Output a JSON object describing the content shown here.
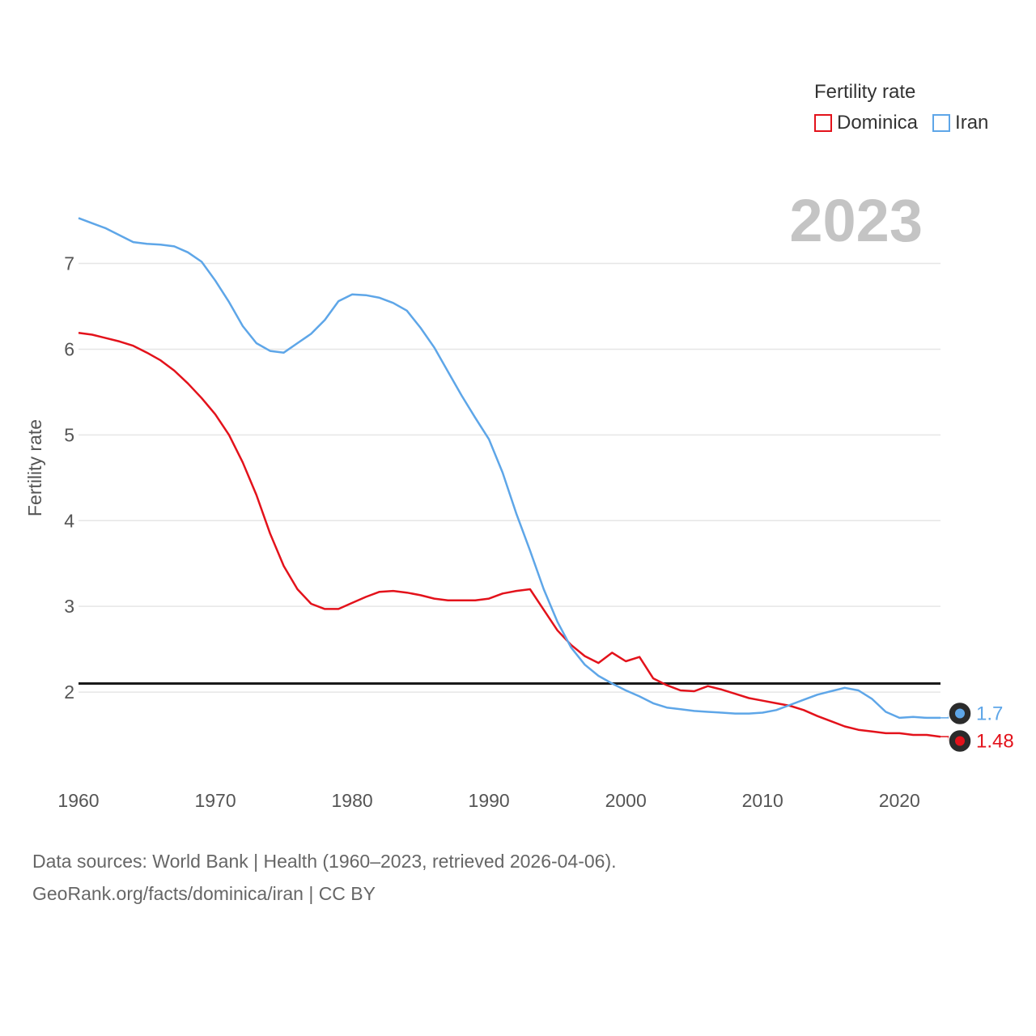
{
  "legend": {
    "title": "Fertility rate",
    "items": [
      {
        "label": "Dominica",
        "color": "#e3121b"
      },
      {
        "label": "Iran",
        "color": "#5ea6e8"
      }
    ]
  },
  "year_label": "2023",
  "footer": {
    "line1": "Data sources: World Bank | Health (1960–2023, retrieved 2026-04-06).",
    "line2": "GeoRank.org/facts/dominica/iran | CC BY"
  },
  "chart_data": {
    "type": "line",
    "title": "Fertility rate",
    "xlabel": "",
    "ylabel": "Fertility rate",
    "xlim": [
      1960,
      2023
    ],
    "ylim": [
      1.0,
      7.6
    ],
    "x_ticks": [
      1960,
      1970,
      1980,
      1990,
      2000,
      2010,
      2020
    ],
    "y_ticks": [
      2,
      3,
      4,
      5,
      6,
      7
    ],
    "reference_line": 2.1,
    "x": [
      1960,
      1961,
      1962,
      1963,
      1964,
      1965,
      1966,
      1967,
      1968,
      1969,
      1970,
      1971,
      1972,
      1973,
      1974,
      1975,
      1976,
      1977,
      1978,
      1979,
      1980,
      1981,
      1982,
      1983,
      1984,
      1985,
      1986,
      1987,
      1988,
      1989,
      1990,
      1991,
      1992,
      1993,
      1994,
      1995,
      1996,
      1997,
      1998,
      1999,
      2000,
      2001,
      2002,
      2003,
      2004,
      2005,
      2006,
      2007,
      2008,
      2009,
      2010,
      2011,
      2012,
      2013,
      2014,
      2015,
      2016,
      2017,
      2018,
      2019,
      2020,
      2021,
      2022,
      2023
    ],
    "series": [
      {
        "name": "Dominica",
        "color": "#e3121b",
        "end_label": "1.48",
        "values": [
          6.19,
          6.17,
          6.13,
          6.09,
          6.04,
          5.96,
          5.87,
          5.75,
          5.6,
          5.43,
          5.24,
          5.0,
          4.68,
          4.3,
          3.85,
          3.47,
          3.2,
          3.03,
          2.97,
          2.97,
          3.04,
          3.11,
          3.17,
          3.18,
          3.16,
          3.13,
          3.09,
          3.07,
          3.07,
          3.07,
          3.09,
          3.15,
          3.18,
          3.2,
          2.96,
          2.72,
          2.55,
          2.42,
          2.34,
          2.46,
          2.36,
          2.41,
          2.16,
          2.08,
          2.02,
          2.01,
          2.07,
          2.03,
          1.98,
          1.93,
          1.9,
          1.87,
          1.84,
          1.79,
          1.72,
          1.66,
          1.6,
          1.56,
          1.54,
          1.52,
          1.52,
          1.5,
          1.5,
          1.48
        ]
      },
      {
        "name": "Iran",
        "color": "#5ea6e8",
        "end_label": "1.7",
        "values": [
          7.53,
          7.47,
          7.41,
          7.33,
          7.25,
          7.23,
          7.22,
          7.2,
          7.13,
          7.02,
          6.8,
          6.55,
          6.27,
          6.07,
          5.98,
          5.96,
          6.07,
          6.18,
          6.34,
          6.56,
          6.64,
          6.63,
          6.6,
          6.54,
          6.45,
          6.25,
          6.02,
          5.74,
          5.46,
          5.2,
          4.95,
          4.56,
          4.08,
          3.65,
          3.2,
          2.82,
          2.52,
          2.32,
          2.19,
          2.1,
          2.02,
          1.95,
          1.87,
          1.82,
          1.8,
          1.78,
          1.77,
          1.76,
          1.75,
          1.75,
          1.76,
          1.79,
          1.85,
          1.91,
          1.97,
          2.01,
          2.05,
          2.02,
          1.92,
          1.77,
          1.7,
          1.71,
          1.7,
          1.7
        ]
      }
    ]
  }
}
